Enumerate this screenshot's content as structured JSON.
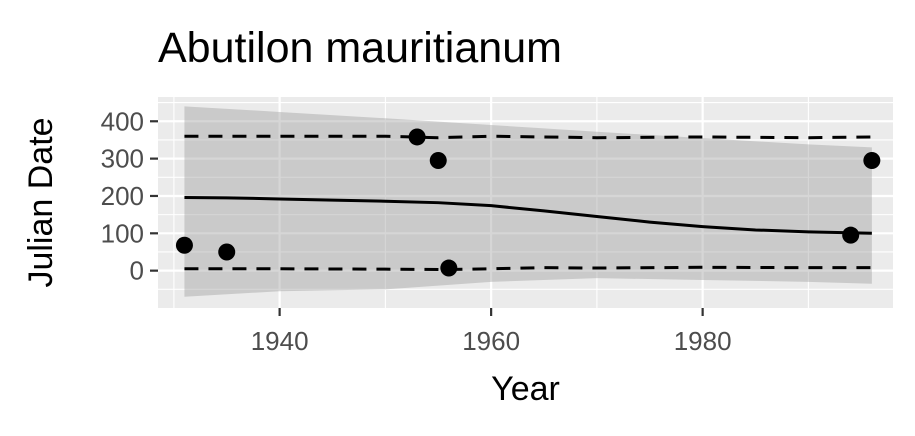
{
  "chart_data": {
    "type": "scatter",
    "title": "Abutilon mauritianum",
    "xlabel": "Year",
    "ylabel": "Julian Date",
    "xlim": [
      1928.5,
      1998.0
    ],
    "ylim": [
      -100,
      465
    ],
    "x_ticks": [
      1940,
      1960,
      1980
    ],
    "y_ticks": [
      0,
      100,
      200,
      300,
      400
    ],
    "grid": true,
    "legend": "none",
    "points": [
      {
        "x": 1931,
        "y": 68
      },
      {
        "x": 1935,
        "y": 50
      },
      {
        "x": 1953,
        "y": 358
      },
      {
        "x": 1955,
        "y": 295
      },
      {
        "x": 1956,
        "y": 7
      },
      {
        "x": 1994,
        "y": 95
      },
      {
        "x": 1996,
        "y": 295
      }
    ],
    "fit_line": {
      "x": [
        1931,
        1935,
        1940,
        1945,
        1950,
        1955,
        1960,
        1965,
        1970,
        1975,
        1980,
        1985,
        1990,
        1996
      ],
      "y": [
        196,
        195,
        192,
        189,
        186,
        182,
        174,
        160,
        145,
        130,
        118,
        109,
        104,
        100
      ]
    },
    "confidence_band": {
      "x": [
        1931,
        1940,
        1950,
        1960,
        1970,
        1980,
        1990,
        1996
      ],
      "upper": [
        440,
        425,
        408,
        390,
        372,
        355,
        338,
        330
      ],
      "lower": [
        -70,
        -55,
        -50,
        -30,
        -20,
        -25,
        -30,
        -35
      ]
    },
    "upper_bound_line": {
      "x": [
        1931,
        1940,
        1950,
        1955,
        1960,
        1965,
        1970,
        1980,
        1990,
        1996
      ],
      "y": [
        360,
        360,
        360,
        356,
        360,
        358,
        356,
        358,
        356,
        358
      ]
    },
    "lower_bound_line": {
      "x": [
        1931,
        1940,
        1950,
        1956,
        1960,
        1965,
        1970,
        1980,
        1990,
        1996
      ],
      "y": [
        5,
        5,
        4,
        3,
        5,
        8,
        7,
        9,
        8,
        8
      ]
    },
    "colors": {
      "panel": "#ebebeb",
      "grid": "#ffffff",
      "ribbon": "#999999",
      "lines": "#000000",
      "points": "#000000",
      "tick_text": "#4d4d4d"
    }
  }
}
